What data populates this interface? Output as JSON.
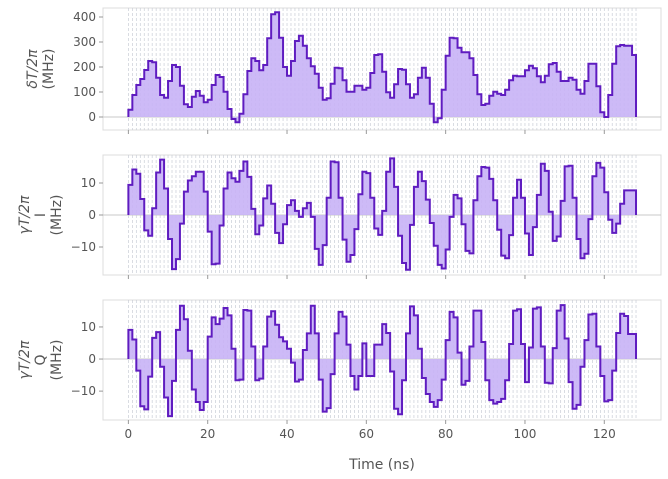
{
  "chart_data": [
    {
      "type": "step",
      "ylabel_lines": [
        "δT/2π",
        "(MHz)"
      ],
      "ylim": [
        -52,
        436
      ],
      "yticks": [
        0,
        100,
        200,
        300,
        400
      ],
      "values": [
        29,
        88,
        128,
        152,
        188,
        224,
        219,
        157,
        88,
        77,
        144,
        208,
        200,
        125,
        51,
        40,
        81,
        104,
        85,
        59,
        69,
        128,
        168,
        160,
        101,
        32,
        -8,
        -21,
        13,
        91,
        184,
        235,
        224,
        187,
        208,
        315,
        411,
        419,
        317,
        200,
        165,
        224,
        304,
        325,
        285,
        235,
        203,
        173,
        117,
        69,
        75,
        133,
        197,
        195,
        147,
        101,
        101,
        125,
        125,
        109,
        117,
        176,
        248,
        251,
        181,
        99,
        77,
        131,
        192,
        189,
        131,
        77,
        91,
        157,
        197,
        157,
        53,
        -21,
        -5,
        109,
        245,
        317,
        315,
        277,
        259,
        259,
        235,
        168,
        91,
        48,
        53,
        85,
        101,
        93,
        88,
        109,
        147,
        165,
        163,
        163,
        187,
        205,
        195,
        163,
        139,
        165,
        211,
        216,
        181,
        144,
        144,
        157,
        149,
        109,
        93,
        144,
        213,
        213,
        123,
        19,
        0,
        88,
        213,
        283,
        288,
        285,
        285,
        248
      ]
    },
    {
      "type": "step",
      "ylabel_lines": [
        "γT/2π",
        "I",
        "(MHz)"
      ],
      "ylim": [
        -18.75,
        18.75
      ],
      "yticks": [
        -10,
        0,
        10
      ],
      "values": [
        9.4,
        14.2,
        12.9,
        5,
        -4.8,
        -6.5,
        2.1,
        13.3,
        17.3,
        8.3,
        -7.5,
        -16.9,
        -13.8,
        -2.7,
        7.3,
        10.8,
        12.1,
        13.5,
        13.5,
        7.3,
        -5.2,
        -15.4,
        -15.2,
        -3.3,
        8.3,
        13.3,
        11.5,
        10.4,
        13.8,
        16.7,
        11.9,
        1.9,
        -6,
        -3.3,
        5.2,
        9.2,
        3.5,
        -5.6,
        -8.8,
        -2.9,
        3.1,
        4.6,
        1.3,
        -0.6,
        2.1,
        3.8,
        -0.6,
        -10.6,
        -15.6,
        -9.4,
        5.4,
        16.7,
        16.5,
        5.4,
        -7.7,
        -14.6,
        -12.5,
        -4.4,
        6.5,
        13.5,
        13.1,
        5.4,
        -4.2,
        -6.2,
        1.3,
        13.5,
        17.7,
        8.8,
        -6.5,
        -15,
        -17.1,
        -3.1,
        8.8,
        13.5,
        10.6,
        4.8,
        -2.5,
        -9.6,
        -15.6,
        -16.7,
        -10.8,
        -0.6,
        6.3,
        5.2,
        -2.9,
        -11.2,
        -12,
        4.6,
        12.1,
        15,
        14.8,
        11.3,
        4.6,
        -4.6,
        -12.7,
        -13.5,
        -6.3,
        5.4,
        11,
        5.4,
        -5.8,
        -12.5,
        -3.8,
        6.3,
        16,
        13.8,
        1,
        -8.1,
        -6.7,
        4.4,
        15.2,
        15.4,
        5.4,
        -7.5,
        -13.5,
        -12.1,
        -1.3,
        12.1,
        16.3,
        14.8,
        7.1,
        -1.5,
        -5.6,
        -2.7,
        3.5,
        7.7,
        7.7,
        7.7
      ]
    },
    {
      "type": "step",
      "ylabel_lines": [
        "γT/2π",
        "Q",
        "(MHz)"
      ],
      "ylim": [
        -19,
        18.4
      ],
      "yticks": [
        -10,
        0,
        10
      ],
      "values": [
        9.1,
        6.1,
        -3.6,
        -14.7,
        -15.7,
        -5.5,
        6.6,
        8.4,
        -2.4,
        -12,
        -17.8,
        -6.8,
        9.1,
        16.6,
        12.4,
        2.6,
        -9.5,
        -13.4,
        -15.9,
        -13.4,
        7,
        13,
        10.9,
        12.6,
        15.9,
        13.6,
        3.2,
        -6.6,
        -6.4,
        15.3,
        15.1,
        3.9,
        -6.6,
        -6.1,
        3.9,
        13.2,
        14.9,
        10.7,
        6.8,
        5.5,
        3.2,
        -1.1,
        -7,
        -6.4,
        2.8,
        8,
        16.6,
        8,
        -6.4,
        -16.4,
        -15.3,
        -4.7,
        8,
        14.7,
        13.2,
        4.5,
        -5.3,
        -9.5,
        -5.3,
        4.9,
        -5.3,
        -5.3,
        4.5,
        4.5,
        10.9,
        8.1,
        -3.9,
        -15.5,
        -17.2,
        -6.6,
        8,
        16.4,
        13.6,
        3.2,
        -5.9,
        -10.9,
        -13.4,
        -14.9,
        -12.8,
        -6.4,
        5.9,
        14.7,
        13,
        2,
        -8,
        -6.8,
        3.9,
        15.1,
        15.1,
        5.3,
        -6.6,
        -12.8,
        -13.9,
        -13.4,
        -12.4,
        -6.6,
        4.7,
        15.1,
        15.5,
        4.7,
        -7.2,
        3.6,
        15.7,
        16.1,
        3.9,
        -7.4,
        -7.6,
        3.4,
        15.1,
        16.8,
        6.4,
        -7.2,
        -15.5,
        -14.3,
        -2.4,
        5.9,
        13.9,
        14.1,
        3.9,
        -5.3,
        -13.2,
        -12.8,
        -3.6,
        8.1,
        14.1,
        13.4,
        7.8,
        7.8
      ]
    }
  ],
  "x_axis": {
    "label": "Time (ns)",
    "xlim": [
      -6.4,
      134.3
    ],
    "ticks": [
      0,
      20,
      40,
      60,
      80,
      100,
      120
    ],
    "step_ns": 1
  },
  "colors": {
    "line": "#5f1cc0",
    "fill": "#c8b2f6",
    "grid": "#c9cdd6",
    "frame": "#dcdcdc",
    "zero": "#c8c8c8"
  }
}
